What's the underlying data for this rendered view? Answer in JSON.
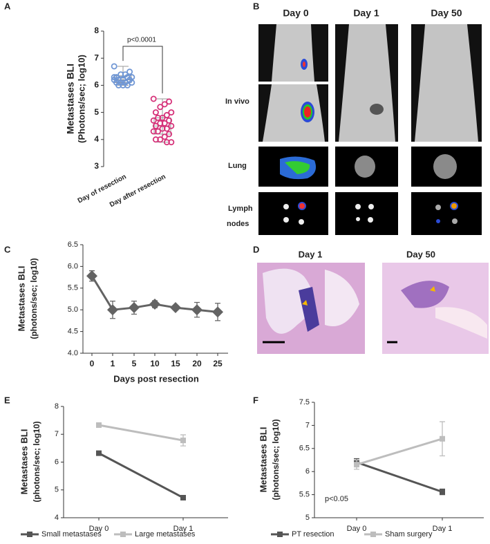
{
  "panel_labels": [
    "A",
    "B",
    "C",
    "D",
    "E",
    "F"
  ],
  "panel_b": {
    "columns": [
      "Day 0",
      "Day 1",
      "Day 50"
    ],
    "rows": [
      "In vivo",
      "Lung"
    ],
    "lymph_label": [
      "Lymph",
      "nodes"
    ]
  },
  "panel_d": {
    "titles": [
      "Day 1",
      "Day 50"
    ]
  },
  "chart_data": [
    {
      "type": "strip",
      "ylabel": [
        "Metastases BLI",
        "(Photons/sec; log10)"
      ],
      "annotation": "p<0.0001",
      "categories": [
        "Day of resection",
        "Day after resection"
      ],
      "ylim": [
        3,
        8
      ],
      "yticks": [
        3,
        4,
        5,
        6,
        7,
        8
      ],
      "series": [
        {
          "color": "#6f96d4",
          "values": [
            6.7,
            6.5,
            6.4,
            6.4,
            6.3,
            6.3,
            6.3,
            6.2,
            6.2,
            6.2,
            6.2,
            6.1,
            6.1,
            6.1,
            6.1,
            6.0,
            6.0,
            6.0,
            6.3,
            6.2
          ],
          "box": [
            6.0,
            6.1,
            6.2,
            6.35,
            6.7
          ]
        },
        {
          "color": "#d6337a",
          "values": [
            5.5,
            5.4,
            5.3,
            5.2,
            5.0,
            5.0,
            4.9,
            4.8,
            4.8,
            4.7,
            4.7,
            4.6,
            4.6,
            4.5,
            4.5,
            4.4,
            4.4,
            4.3,
            4.3,
            4.2,
            4.1,
            4.0,
            4.0,
            3.9,
            3.9
          ],
          "box": [
            3.9,
            4.2,
            4.5,
            4.8,
            5.5
          ]
        }
      ]
    },
    {
      "type": "line",
      "ylabel": [
        "Metastases BLI",
        "(photons/sec; log10)"
      ],
      "xlabel": "Days post resection",
      "categories": [
        "0",
        "1",
        "5",
        "10",
        "15",
        "20",
        "25"
      ],
      "ylim": [
        4.0,
        6.5
      ],
      "yticks": [
        {
          "value": 4.0,
          "label": "4.0"
        },
        {
          "value": 4.5,
          "label": "4.5"
        },
        {
          "value": 5.0,
          "label": "5.0"
        },
        {
          "value": 5.5,
          "label": "5.5"
        },
        {
          "value": 6.0,
          "label": "6.0"
        },
        {
          "value": 6.5,
          "label": "6.5"
        }
      ],
      "marker": "diamond",
      "series": [
        {
          "color": "#636363",
          "values": [
            5.78,
            5.0,
            5.05,
            5.13,
            5.05,
            5.0,
            4.95
          ],
          "errors": [
            0.12,
            0.2,
            0.15,
            0.08,
            0.05,
            0.17,
            0.2
          ]
        }
      ]
    },
    {
      "type": "line",
      "ylabel": [
        "Metastases BLI",
        "(photons/sec; log10)"
      ],
      "categories": [
        "Day 0",
        "Day 1"
      ],
      "ylim": [
        4,
        8
      ],
      "yticks": [
        4,
        5,
        6,
        7,
        8
      ],
      "marker": "square",
      "series": [
        {
          "name": "Small metastases",
          "color": "#555555",
          "values": [
            6.32,
            4.72
          ],
          "errors": [
            0.05,
            0.08
          ]
        },
        {
          "name": "Large metastases",
          "color": "#bdbdbd",
          "values": [
            7.33,
            6.78
          ],
          "errors": [
            0.05,
            0.2
          ]
        }
      ]
    },
    {
      "type": "line",
      "ylabel": [
        "Metastases BLI",
        "(photons/sec; log10)"
      ],
      "annotation": "p<0.05",
      "categories": [
        "Day 0",
        "Day 1"
      ],
      "ylim": [
        5,
        7.5
      ],
      "yticks": [
        5,
        5.5,
        6,
        6.5,
        7,
        7.5
      ],
      "marker": "square",
      "series": [
        {
          "name": "PT resection",
          "color": "#555555",
          "values": [
            6.2,
            5.56
          ],
          "errors": [
            0.08,
            0.06
          ]
        },
        {
          "name": "Sham surgery",
          "color": "#bdbdbd",
          "values": [
            6.15,
            6.71
          ],
          "errors": [
            0.1,
            0.37
          ]
        }
      ]
    }
  ]
}
